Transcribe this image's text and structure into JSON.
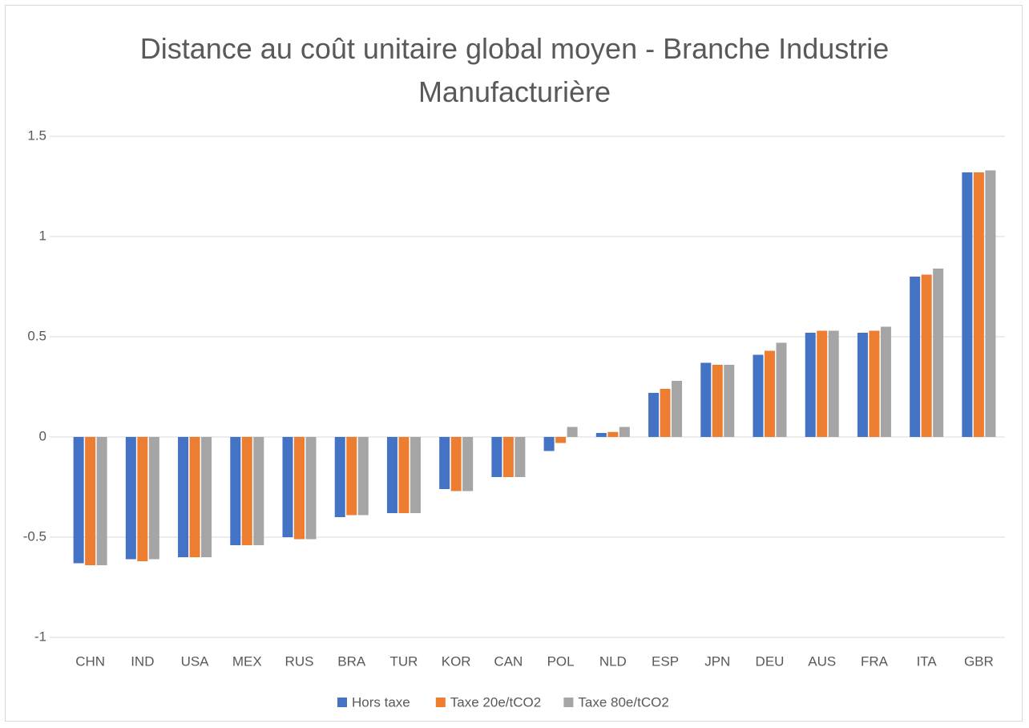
{
  "chart_data": {
    "type": "bar",
    "title": "Distance au coût unitaire global moyen - Branche Industrie Manufacturière",
    "categories": [
      "CHN",
      "IND",
      "USA",
      "MEX",
      "RUS",
      "BRA",
      "TUR",
      "KOR",
      "CAN",
      "POL",
      "NLD",
      "ESP",
      "JPN",
      "DEU",
      "AUS",
      "FRA",
      "ITA",
      "GBR"
    ],
    "series": [
      {
        "name": "Hors taxe",
        "color": "#4472c4",
        "values": [
          -0.63,
          -0.61,
          -0.6,
          -0.54,
          -0.5,
          -0.4,
          -0.38,
          -0.26,
          -0.2,
          -0.07,
          0.02,
          0.22,
          0.37,
          0.41,
          0.52,
          0.52,
          0.8,
          1.32
        ]
      },
      {
        "name": "Taxe 20e/tCO2",
        "color": "#ed7d31",
        "values": [
          -0.64,
          -0.62,
          -0.6,
          -0.54,
          -0.51,
          -0.39,
          -0.38,
          -0.27,
          -0.2,
          -0.03,
          0.025,
          0.24,
          0.36,
          0.43,
          0.53,
          0.53,
          0.81,
          1.32
        ]
      },
      {
        "name": "Taxe 80e/tCO2",
        "color": "#a5a5a5",
        "values": [
          -0.64,
          -0.61,
          -0.6,
          -0.54,
          -0.51,
          -0.39,
          -0.38,
          -0.27,
          -0.2,
          0.05,
          0.05,
          0.28,
          0.36,
          0.47,
          0.53,
          0.55,
          0.84,
          1.33
        ]
      }
    ],
    "ylim": [
      -1,
      1.5
    ],
    "yticks": [
      -1,
      -0.5,
      0,
      0.5,
      1,
      1.5
    ],
    "grid": true,
    "legend": "bottom"
  }
}
